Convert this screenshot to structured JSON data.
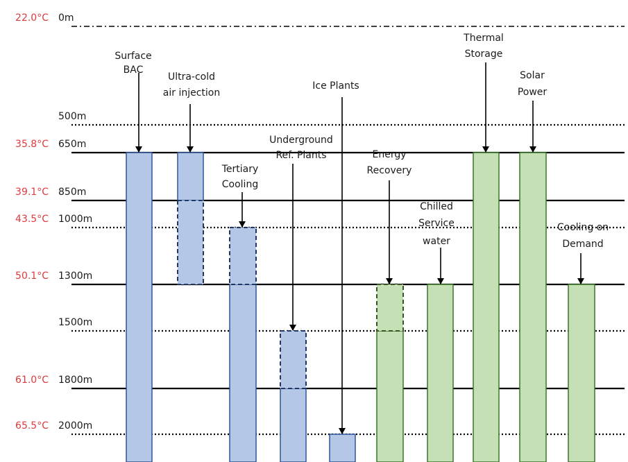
{
  "colors": {
    "blue_fill": "#b4c7e7",
    "blue_stroke": "#2f5597",
    "blue_dash_stroke": "#1f3864",
    "green_fill": "#c5e0b4",
    "green_stroke": "#38762a",
    "green_dash_stroke": "#375623",
    "temperature_text": "#e0393e",
    "line": "#000000"
  },
  "levels": [
    {
      "id": "0m",
      "temp": "22.0°C",
      "depth": "0m",
      "style": "dashdot"
    },
    {
      "id": "500m",
      "temp": "",
      "depth": "500m",
      "style": "dotted"
    },
    {
      "id": "650m",
      "temp": "35.8°C",
      "depth": "650m",
      "style": "solid"
    },
    {
      "id": "850m",
      "temp": "39.1°C",
      "depth": "850m",
      "style": "solid"
    },
    {
      "id": "1000m",
      "temp": "43.5°C",
      "depth": "1000m",
      "style": "dotted"
    },
    {
      "id": "1300m",
      "temp": "50.1°C",
      "depth": "1300m",
      "style": "solid"
    },
    {
      "id": "1500m",
      "temp": "",
      "depth": "1500m",
      "style": "dotted"
    },
    {
      "id": "1800m",
      "temp": "61.0°C",
      "depth": "1800m",
      "style": "solid"
    },
    {
      "id": "2000m",
      "temp": "65.5°C",
      "depth": "2000m",
      "style": "dotted"
    }
  ],
  "technologies": [
    {
      "id": "surface-bac",
      "label": [
        "Surface",
        "BAC"
      ],
      "group": "blue",
      "from": "650m",
      "to": "bottom",
      "dashed_segment": null
    },
    {
      "id": "ultra-cold-air",
      "label": [
        "Ultra-cold",
        "air injection"
      ],
      "group": "blue",
      "from": "650m",
      "to": "1300m",
      "dashed_segment": [
        "850m",
        "1300m"
      ]
    },
    {
      "id": "tertiary-cooling",
      "label": [
        "Tertiary",
        "Cooling"
      ],
      "group": "blue",
      "from": "1000m",
      "to": "bottom",
      "dashed_segment": [
        "1000m",
        "1300m"
      ]
    },
    {
      "id": "underground-ref-plants",
      "label": [
        "Underground",
        "Ref. Plants"
      ],
      "group": "blue",
      "from": "1500m",
      "to": "bottom",
      "dashed_segment": [
        "1500m",
        "1800m"
      ]
    },
    {
      "id": "ice-plants",
      "label": [
        "Ice Plants"
      ],
      "group": "blue",
      "from": "2000m",
      "to": "bottom",
      "dashed_segment": null
    },
    {
      "id": "energy-recovery",
      "label": [
        "Energy",
        "Recovery"
      ],
      "group": "green",
      "from": "1300m",
      "to": "bottom",
      "dashed_segment": [
        "1300m",
        "1500m"
      ]
    },
    {
      "id": "chilled-service-water",
      "label": [
        "Chilled",
        "Service",
        "water"
      ],
      "group": "green",
      "from": "1300m",
      "to": "bottom",
      "dashed_segment": null
    },
    {
      "id": "thermal-storage",
      "label": [
        "Thermal",
        "Storage"
      ],
      "group": "green",
      "from": "650m",
      "to": "bottom",
      "dashed_segment": null
    },
    {
      "id": "solar-power",
      "label": [
        "Solar",
        "Power"
      ],
      "group": "green",
      "from": "650m",
      "to": "bottom",
      "dashed_segment": null
    },
    {
      "id": "cooling-on-demand",
      "label": [
        "Cooling on",
        "Demand"
      ],
      "group": "green",
      "from": "1300m",
      "to": "bottom",
      "dashed_segment": null
    }
  ]
}
